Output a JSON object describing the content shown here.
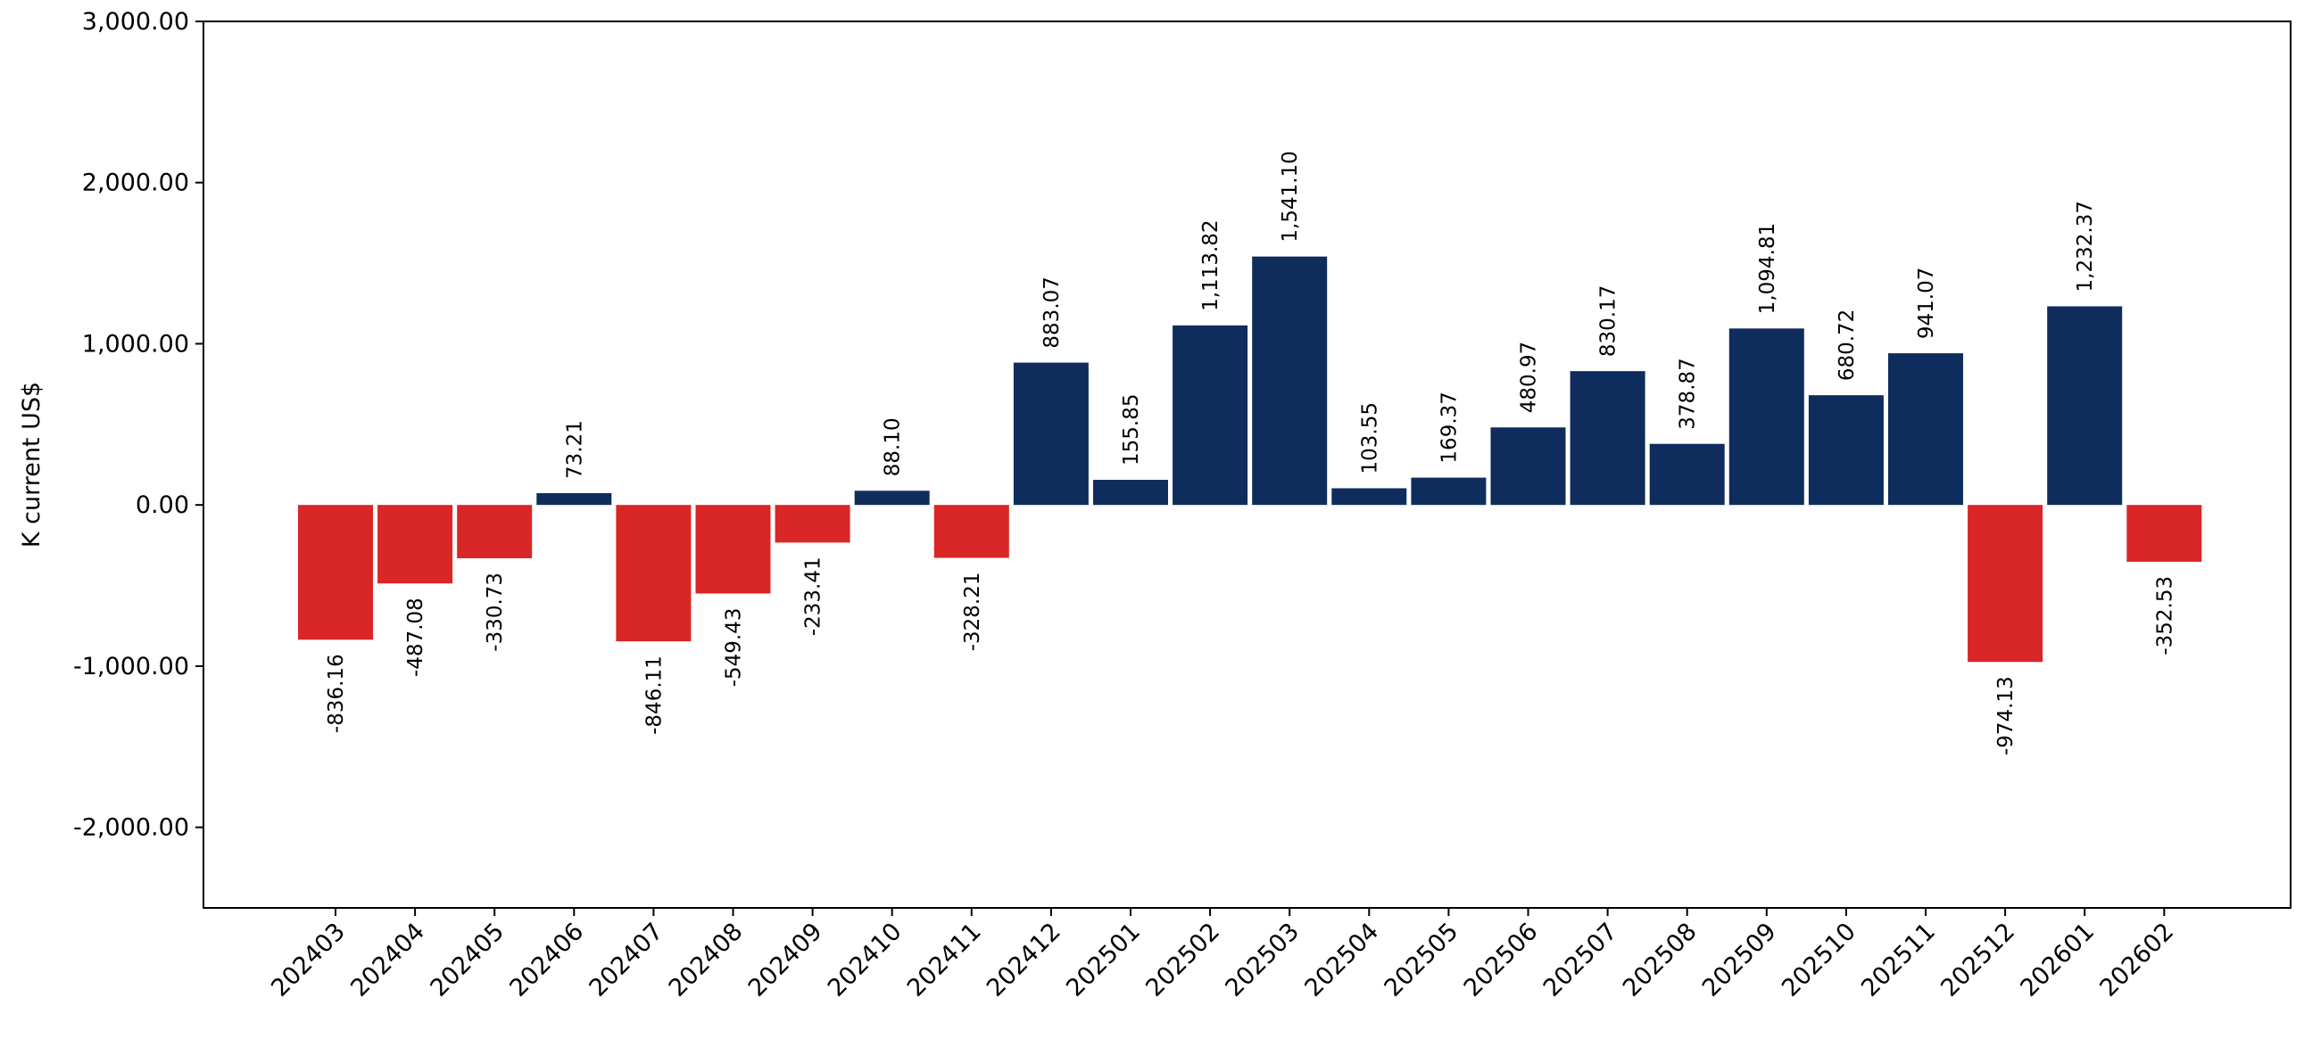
{
  "chart_data": {
    "type": "bar",
    "title": "",
    "xlabel": "",
    "ylabel": "K current US$",
    "ylim": [
      -2500,
      3000
    ],
    "yticks": [
      -2000,
      -1000,
      0,
      1000,
      2000,
      3000
    ],
    "ytick_labels": [
      "-2,000.00",
      "-1,000.00",
      "0.00",
      "1,000.00",
      "2,000.00",
      "3,000.00"
    ],
    "grid": false,
    "legend": "none",
    "colors": {
      "positive": "#0f2d5c",
      "negative": "#d92626"
    },
    "categories": [
      "202403",
      "202404",
      "202405",
      "202406",
      "202407",
      "202408",
      "202409",
      "202410",
      "202411",
      "202412",
      "202501",
      "202502",
      "202503",
      "202504",
      "202505",
      "202506",
      "202507",
      "202508",
      "202509",
      "202510",
      "202511",
      "202512",
      "202601",
      "202602"
    ],
    "values": [
      -836.16,
      -487.08,
      -330.73,
      73.21,
      -846.11,
      -549.43,
      -233.41,
      88.1,
      -328.21,
      883.07,
      155.85,
      1113.82,
      1541.1,
      103.55,
      169.37,
      480.97,
      830.17,
      378.87,
      1094.81,
      680.72,
      941.07,
      -974.13,
      1232.37,
      -352.53
    ],
    "value_labels": [
      "-836.16",
      "-487.08",
      "-330.73",
      "73.21",
      "-846.11",
      "-549.43",
      "-233.41",
      "88.10",
      "-328.21",
      "883.07",
      "155.85",
      "1,113.82",
      "1,541.10",
      "103.55",
      "169.37",
      "480.97",
      "830.17",
      "378.87",
      "1,094.81",
      "680.72",
      "941.07",
      "-974.13",
      "1,232.37",
      "-352.53"
    ]
  }
}
